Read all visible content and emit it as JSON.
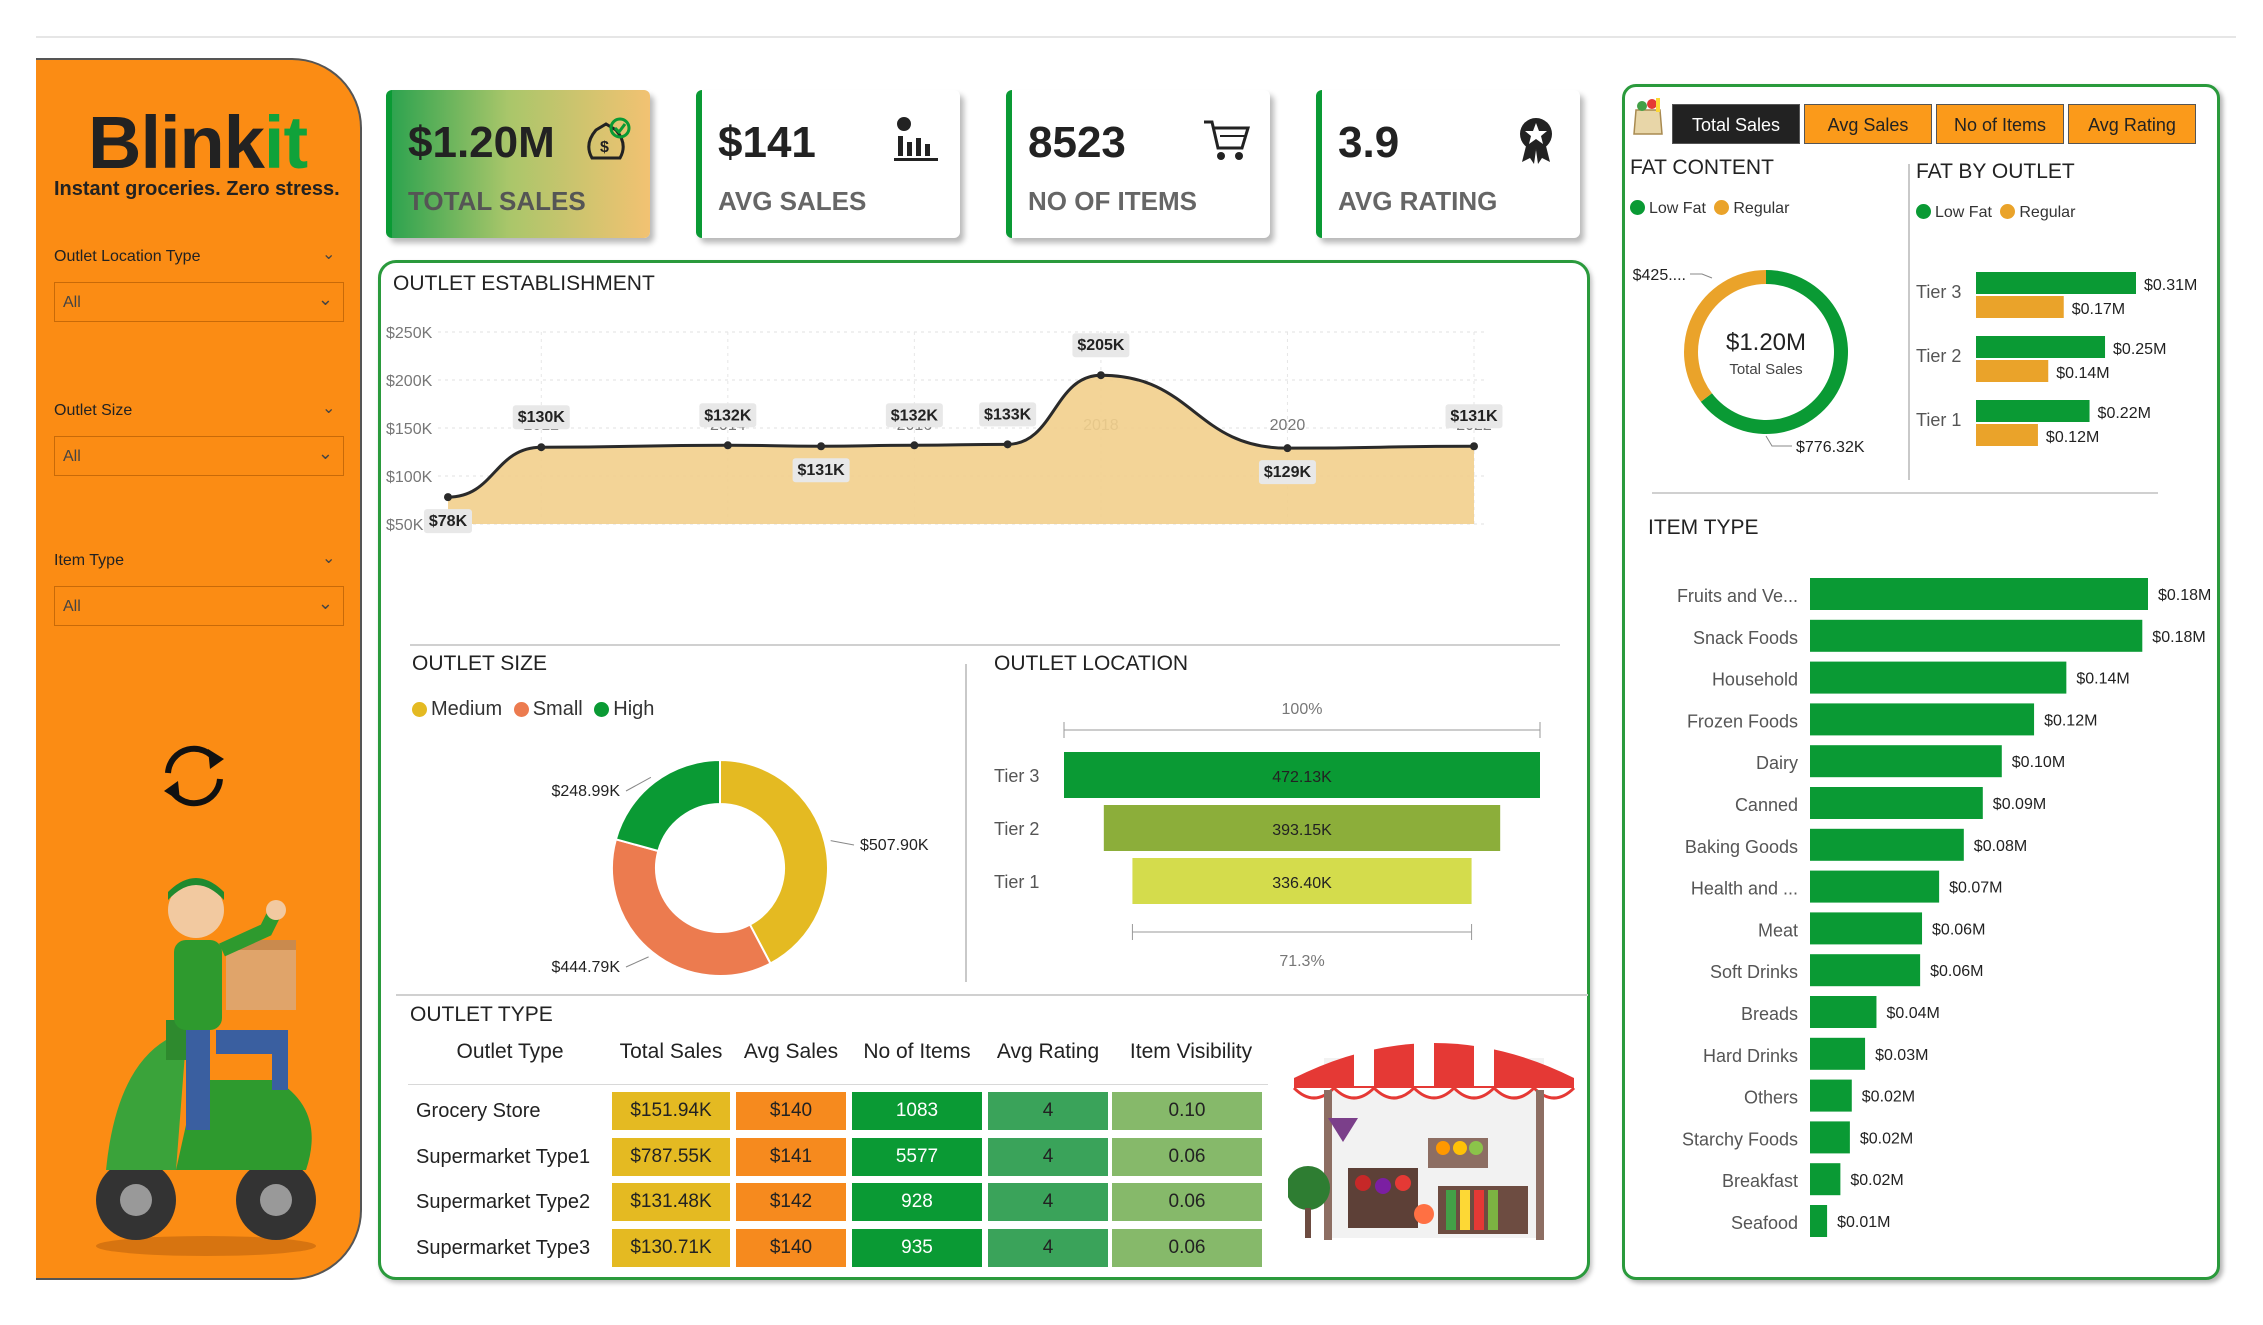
{
  "brand": {
    "name_main": "Blink",
    "name_accent": "it",
    "tagline": "Instant groceries. Zero stress."
  },
  "filters": [
    {
      "label": "Outlet Location Type",
      "value": "All"
    },
    {
      "label": "Outlet Size",
      "value": "All"
    },
    {
      "label": "Item Type",
      "value": "All"
    }
  ],
  "kpis": {
    "total_sales": {
      "value": "$1.20M",
      "label": "TOTAL SALES"
    },
    "avg_sales": {
      "value": "$141",
      "label": "AVG SALES"
    },
    "no_items": {
      "value": "8523",
      "label": "NO OF ITEMS"
    },
    "avg_rating": {
      "value": "3.9",
      "label": "AVG RATING"
    }
  },
  "colors": {
    "brand_orange": "#fb8c14",
    "brand_green": "#0a9a34",
    "medium": "#e4ba22",
    "small": "#ec7b4f",
    "high": "#0a9a34",
    "regular": "#eaa32a"
  },
  "outlet_establishment": {
    "title": "OUTLET ESTABLISHMENT",
    "chart_data": {
      "type": "area",
      "x": [
        2011,
        2012,
        2014,
        2015,
        2016,
        2017,
        2018,
        2020,
        2022
      ],
      "values": [
        78,
        130,
        132,
        131,
        132,
        133,
        205,
        129,
        131
      ],
      "labels": [
        "$78K",
        "$130K",
        "$132K",
        "$131K",
        "$132K",
        "$133K",
        "$205K",
        "$129K",
        "$131K"
      ],
      "x_ticks": [
        "2012",
        "2014",
        "2016",
        "2018",
        "2020",
        "2022"
      ],
      "y_ticks": [
        "$50K",
        "$100K",
        "$150K",
        "$200K",
        "$250K"
      ],
      "ylim": [
        50,
        250
      ]
    }
  },
  "outlet_size": {
    "title": "OUTLET SIZE",
    "legend": [
      "Medium",
      "Small",
      "High"
    ],
    "chart_data": {
      "type": "pie",
      "categories": [
        "Medium",
        "Small",
        "High"
      ],
      "values": [
        507.9,
        444.79,
        248.99
      ],
      "labels": [
        "$507.90K",
        "$444.79K",
        "$248.99K"
      ]
    }
  },
  "outlet_location": {
    "title": "OUTLET LOCATION",
    "top_pct": "100%",
    "bottom_pct": "71.3%",
    "chart_data": {
      "type": "bar",
      "categories": [
        "Tier 3",
        "Tier 2",
        "Tier 1"
      ],
      "values": [
        472.13,
        393.15,
        336.4
      ],
      "labels": [
        "472.13K",
        "393.15K",
        "336.40K"
      ]
    }
  },
  "outlet_type": {
    "title": "OUTLET TYPE",
    "headers": [
      "Outlet Type",
      "Total Sales",
      "Avg Sales",
      "No of Items",
      "Avg Rating",
      "Item Visibility"
    ],
    "rows": [
      {
        "name": "Grocery Store",
        "total": "$151.94K",
        "avg": "$140",
        "items": "1083",
        "rating": "4",
        "vis": "0.10"
      },
      {
        "name": "Supermarket Type1",
        "total": "$787.55K",
        "avg": "$141",
        "items": "5577",
        "rating": "4",
        "vis": "0.06"
      },
      {
        "name": "Supermarket Type2",
        "total": "$131.48K",
        "avg": "$142",
        "items": "928",
        "rating": "4",
        "vis": "0.06"
      },
      {
        "name": "Supermarket Type3",
        "total": "$130.71K",
        "avg": "$140",
        "items": "935",
        "rating": "4",
        "vis": "0.06"
      }
    ]
  },
  "tabs": [
    "Total Sales",
    "Avg Sales",
    "No of Items",
    "Avg Rating"
  ],
  "fat_content": {
    "title": "FAT CONTENT",
    "legend": [
      "Low Fat",
      "Regular"
    ],
    "center_value": "$1.20M",
    "center_label": "Total Sales",
    "chart_data": {
      "type": "pie",
      "categories": [
        "Low Fat",
        "Regular"
      ],
      "values": [
        776.32,
        425
      ],
      "labels": [
        "$776.32K",
        "$425...."
      ]
    }
  },
  "fat_by_outlet": {
    "title": "FAT BY OUTLET",
    "legend": [
      "Low Fat",
      "Regular"
    ],
    "chart_data": {
      "type": "bar",
      "categories": [
        "Tier 3",
        "Tier 2",
        "Tier 1"
      ],
      "series": [
        {
          "name": "Low Fat",
          "values": [
            0.31,
            0.25,
            0.22
          ],
          "labels": [
            "$0.31M",
            "$0.25M",
            "$0.22M"
          ]
        },
        {
          "name": "Regular",
          "values": [
            0.17,
            0.14,
            0.12
          ],
          "labels": [
            "$0.17M",
            "$0.14M",
            "$0.12M"
          ]
        }
      ]
    }
  },
  "item_type": {
    "title": "ITEM TYPE",
    "chart_data": {
      "type": "bar",
      "categories": [
        "Fruits and Ve...",
        "Snack Foods",
        "Household",
        "Frozen Foods",
        "Dairy",
        "Canned",
        "Baking Goods",
        "Health and ...",
        "Meat",
        "Soft Drinks",
        "Breads",
        "Hard Drinks",
        "Others",
        "Starchy Foods",
        "Breakfast",
        "Seafood"
      ],
      "values": [
        0.178,
        0.175,
        0.135,
        0.118,
        0.101,
        0.091,
        0.081,
        0.068,
        0.059,
        0.058,
        0.035,
        0.029,
        0.022,
        0.021,
        0.016,
        0.009
      ],
      "labels": [
        "$0.18M",
        "$0.18M",
        "$0.14M",
        "$0.12M",
        "$0.10M",
        "$0.09M",
        "$0.08M",
        "$0.07M",
        "$0.06M",
        "$0.06M",
        "$0.04M",
        "$0.03M",
        "$0.02M",
        "$0.02M",
        "$0.02M",
        "$0.01M"
      ]
    }
  }
}
